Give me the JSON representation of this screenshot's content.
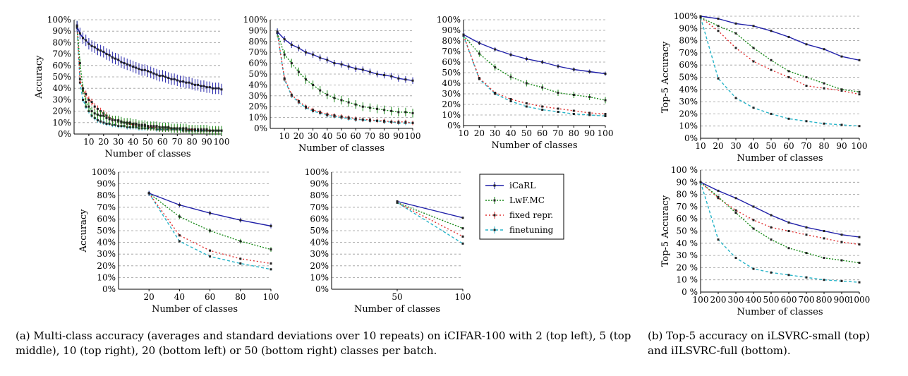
{
  "colors": {
    "iCaRL": "#1f1fa8",
    "LwF.MC": "#1a8a1a",
    "fixed repr.": "#e03030",
    "finetuning": "#27b4c8",
    "grid": "#9a9a9a",
    "marker": "#222222"
  },
  "legend": {
    "position": "between bottom-left panels",
    "entries": [
      "iCaRL",
      "LwF.MC",
      "fixed repr.",
      "finetuning"
    ]
  },
  "captions": {
    "a": "(a) Multi-class accuracy (averages and standard deviations over 10 repeats) on iCIFAR-100 with 2 (top left), 5 (top middle), 10 (top right), 20 (bottom left) or 50 (bottom right) classes per batch.",
    "b": "(b) Top-5 accuracy on iLSVRC-small (top) and iILSVRC-full (bottom)."
  },
  "chart_data": [
    {
      "id": "p1",
      "type": "line",
      "xlabel": "Number of classes",
      "ylabel": "Accuracy",
      "xlim": [
        0,
        100
      ],
      "ylim": [
        0,
        100
      ],
      "xticks": [
        10,
        20,
        30,
        40,
        50,
        60,
        70,
        80,
        90,
        100
      ],
      "yticks": [
        "0%",
        "10%",
        "20%",
        "30%",
        "40%",
        "50%",
        "60%",
        "70%",
        "80%",
        "90%",
        "100%"
      ],
      "grid": true,
      "x": [
        2,
        4,
        6,
        8,
        10,
        12,
        14,
        16,
        18,
        20,
        22,
        24,
        26,
        28,
        30,
        32,
        34,
        36,
        38,
        40,
        42,
        44,
        46,
        48,
        50,
        52,
        54,
        56,
        58,
        60,
        62,
        64,
        66,
        68,
        70,
        72,
        74,
        76,
        78,
        80,
        82,
        84,
        86,
        88,
        90,
        92,
        94,
        96,
        98,
        100
      ],
      "series": [
        {
          "name": "iCaRL",
          "values": [
            94,
            88,
            84,
            82,
            79,
            77,
            76,
            74,
            73,
            72,
            70,
            69,
            67,
            66,
            65,
            63,
            62,
            61,
            60,
            59,
            58,
            57,
            56,
            56,
            55,
            54,
            53,
            52,
            51,
            51,
            50,
            49,
            48,
            48,
            47,
            46,
            46,
            45,
            45,
            44,
            43,
            43,
            42,
            42,
            41,
            41,
            40,
            40,
            40,
            39
          ],
          "err": 5
        },
        {
          "name": "LwF.MC",
          "values": [
            95,
            62,
            40,
            28,
            24,
            20,
            18,
            17,
            16,
            16,
            14,
            13,
            12,
            12,
            12,
            11,
            10,
            10,
            10,
            9,
            9,
            8,
            8,
            8,
            7,
            7,
            7,
            7,
            6,
            6,
            6,
            6,
            5,
            5,
            5,
            5,
            5,
            5,
            4,
            4,
            4,
            4,
            4,
            4,
            4,
            3,
            3,
            3,
            3,
            3
          ],
          "err": 4
        },
        {
          "name": "fixed repr.",
          "values": [
            95,
            48,
            38,
            35,
            30,
            28,
            24,
            22,
            20,
            18,
            16,
            14,
            13,
            12,
            11,
            10,
            10,
            9,
            9,
            8,
            8,
            7,
            7,
            7,
            6,
            6,
            6,
            6,
            5,
            5,
            5,
            5,
            5,
            5,
            4,
            4,
            4,
            4,
            4,
            4,
            4,
            3,
            3,
            3,
            3,
            3,
            3,
            3,
            3,
            3
          ],
          "err": 3
        },
        {
          "name": "finetuning",
          "values": [
            93,
            45,
            30,
            24,
            20,
            16,
            14,
            12,
            11,
            10,
            9,
            9,
            8,
            8,
            7,
            7,
            7,
            6,
            6,
            6,
            6,
            5,
            5,
            5,
            5,
            5,
            5,
            4,
            4,
            4,
            4,
            4,
            4,
            4,
            4,
            4,
            3,
            3,
            3,
            3,
            3,
            3,
            3,
            3,
            3,
            3,
            3,
            3,
            3,
            3
          ],
          "err": 2
        }
      ]
    },
    {
      "id": "p2",
      "type": "line",
      "xlabel": "Number of classes",
      "ylabel": "",
      "xlim": [
        0,
        100
      ],
      "ylim": [
        0,
        100
      ],
      "xticks": [
        10,
        20,
        30,
        40,
        50,
        60,
        70,
        80,
        90,
        100
      ],
      "yticks": [
        "0%",
        "10%",
        "20%",
        "30%",
        "40%",
        "50%",
        "60%",
        "70%",
        "80%",
        "90%",
        "100%"
      ],
      "grid": true,
      "x": [
        5,
        10,
        15,
        20,
        25,
        30,
        35,
        40,
        45,
        50,
        55,
        60,
        65,
        70,
        75,
        80,
        85,
        90,
        95,
        100
      ],
      "series": [
        {
          "name": "iCaRL",
          "values": [
            89,
            82,
            77,
            74,
            70,
            68,
            65,
            63,
            60,
            59,
            57,
            55,
            54,
            52,
            50,
            49,
            48,
            46,
            45,
            44
          ],
          "err": 3
        },
        {
          "name": "LwF.MC",
          "values": [
            88,
            68,
            60,
            52,
            45,
            40,
            35,
            31,
            28,
            26,
            24,
            22,
            20,
            19,
            18,
            17,
            16,
            15,
            15,
            14
          ],
          "err": 4
        },
        {
          "name": "fixed repr.",
          "values": [
            88,
            46,
            31,
            25,
            20,
            17,
            15,
            13,
            12,
            11,
            10,
            9,
            8,
            8,
            7,
            7,
            6,
            6,
            6,
            5
          ],
          "err": 2
        },
        {
          "name": "finetuning",
          "values": [
            88,
            45,
            30,
            24,
            19,
            16,
            14,
            12,
            11,
            10,
            9,
            8,
            8,
            7,
            7,
            6,
            6,
            5,
            5,
            5
          ],
          "err": 2
        }
      ]
    },
    {
      "id": "p3",
      "type": "line",
      "xlabel": "Number of classes",
      "ylabel": "",
      "xlim": [
        10,
        100
      ],
      "ylim": [
        0,
        100
      ],
      "xticks": [
        10,
        20,
        30,
        40,
        50,
        60,
        70,
        80,
        90,
        100
      ],
      "yticks": [
        "0%",
        "10%",
        "20%",
        "30%",
        "40%",
        "50%",
        "60%",
        "70%",
        "80%",
        "90%",
        "100%"
      ],
      "grid": true,
      "x": [
        10,
        20,
        30,
        40,
        50,
        60,
        70,
        80,
        90,
        100
      ],
      "series": [
        {
          "name": "iCaRL",
          "values": [
            86,
            78,
            72,
            67,
            63,
            60,
            56,
            53,
            51,
            49
          ],
          "err": 2
        },
        {
          "name": "LwF.MC",
          "values": [
            85,
            68,
            55,
            46,
            40,
            36,
            31,
            29,
            27,
            24
          ],
          "err": 3
        },
        {
          "name": "fixed repr.",
          "values": [
            85,
            45,
            31,
            25,
            21,
            18,
            16,
            14,
            12,
            11
          ],
          "err": 1
        },
        {
          "name": "finetuning",
          "values": [
            85,
            44,
            30,
            23,
            18,
            15,
            13,
            11,
            10,
            9
          ],
          "err": 1
        }
      ]
    },
    {
      "id": "p4",
      "type": "line",
      "xlabel": "Number of classes",
      "ylabel": "Accuracy",
      "xlim": [
        0,
        100
      ],
      "ylim": [
        0,
        100
      ],
      "xticks": [
        20,
        40,
        60,
        80,
        100
      ],
      "yticks": [
        "0%",
        "10%",
        "20%",
        "30%",
        "40%",
        "50%",
        "60%",
        "70%",
        "80%",
        "90%",
        "100%"
      ],
      "grid": true,
      "x": [
        20,
        40,
        60,
        80,
        100
      ],
      "series": [
        {
          "name": "iCaRL",
          "values": [
            82,
            72,
            65,
            59,
            54
          ],
          "err": 2
        },
        {
          "name": "LwF.MC",
          "values": [
            82,
            62,
            50,
            41,
            34
          ],
          "err": 2
        },
        {
          "name": "fixed repr.",
          "values": [
            82,
            46,
            33,
            26,
            22
          ],
          "err": 1
        },
        {
          "name": "finetuning",
          "values": [
            82,
            41,
            28,
            22,
            17
          ],
          "err": 1
        }
      ]
    },
    {
      "id": "p5",
      "type": "line",
      "xlabel": "Number of classes",
      "ylabel": "",
      "xlim": [
        0,
        100
      ],
      "ylim": [
        0,
        100
      ],
      "xticks": [
        50,
        100
      ],
      "yticks": [
        "0%",
        "10%",
        "20%",
        "30%",
        "40%",
        "50%",
        "60%",
        "70%",
        "80%",
        "90%",
        "100%"
      ],
      "grid": true,
      "x": [
        50,
        100
      ],
      "series": [
        {
          "name": "iCaRL",
          "values": [
            75,
            61
          ],
          "err": 1
        },
        {
          "name": "LwF.MC",
          "values": [
            74,
            52
          ],
          "err": 1
        },
        {
          "name": "fixed repr.",
          "values": [
            74,
            45
          ],
          "err": 1
        },
        {
          "name": "finetuning",
          "values": [
            74,
            39
          ],
          "err": 1
        }
      ]
    },
    {
      "id": "p6",
      "type": "line",
      "xlabel": "Number of classes",
      "ylabel": "Top-5 Accuracy",
      "xlim": [
        10,
        100
      ],
      "ylim": [
        0,
        100
      ],
      "xticks": [
        10,
        20,
        30,
        40,
        50,
        60,
        70,
        80,
        90,
        100
      ],
      "yticks": [
        "0%",
        "10%",
        "20%",
        "30%",
        "40%",
        "50%",
        "60%",
        "70%",
        "80%",
        "90%",
        "100%"
      ],
      "grid": true,
      "x": [
        10,
        20,
        30,
        40,
        50,
        60,
        70,
        80,
        90,
        100
      ],
      "series": [
        {
          "name": "iCaRL",
          "values": [
            100,
            98,
            94,
            92,
            88,
            83,
            77,
            73,
            67,
            64
          ],
          "err": 0
        },
        {
          "name": "LwF.MC",
          "values": [
            99,
            92,
            86,
            74,
            64,
            55,
            50,
            45,
            40,
            38
          ],
          "err": 0
        },
        {
          "name": "fixed repr.",
          "values": [
            99,
            88,
            74,
            63,
            56,
            50,
            43,
            41,
            39,
            36
          ],
          "err": 0
        },
        {
          "name": "finetuning",
          "values": [
            99,
            49,
            33,
            25,
            20,
            16,
            14,
            12,
            11,
            10
          ],
          "err": 0
        }
      ]
    },
    {
      "id": "p7",
      "type": "line",
      "xlabel": "Number of classes",
      "ylabel": "Top-5 Accuracy",
      "xlim": [
        100,
        1000
      ],
      "ylim": [
        0,
        100
      ],
      "xticks": [
        100,
        200,
        300,
        400,
        500,
        600,
        700,
        800,
        900,
        1000
      ],
      "yticks": [
        "0 %",
        "10 %",
        "20 %",
        "30 %",
        "40 %",
        "50 %",
        "60 %",
        "70 %",
        "80 %",
        "90 %",
        "100 %"
      ],
      "grid": true,
      "x": [
        100,
        200,
        300,
        400,
        500,
        600,
        700,
        800,
        900,
        1000
      ],
      "series": [
        {
          "name": "iCaRL",
          "values": [
            90,
            83,
            77,
            70,
            63,
            57,
            53,
            50,
            47,
            45
          ],
          "err": 0
        },
        {
          "name": "LwF.MC",
          "values": [
            90,
            78,
            65,
            52,
            43,
            36,
            32,
            28,
            26,
            24
          ],
          "err": 0
        },
        {
          "name": "fixed repr.",
          "values": [
            90,
            77,
            67,
            59,
            53,
            50,
            47,
            44,
            41,
            39
          ],
          "err": 0
        },
        {
          "name": "finetuning",
          "values": [
            90,
            43,
            28,
            19,
            16,
            14,
            12,
            10,
            9,
            8
          ],
          "err": 0
        }
      ]
    }
  ]
}
